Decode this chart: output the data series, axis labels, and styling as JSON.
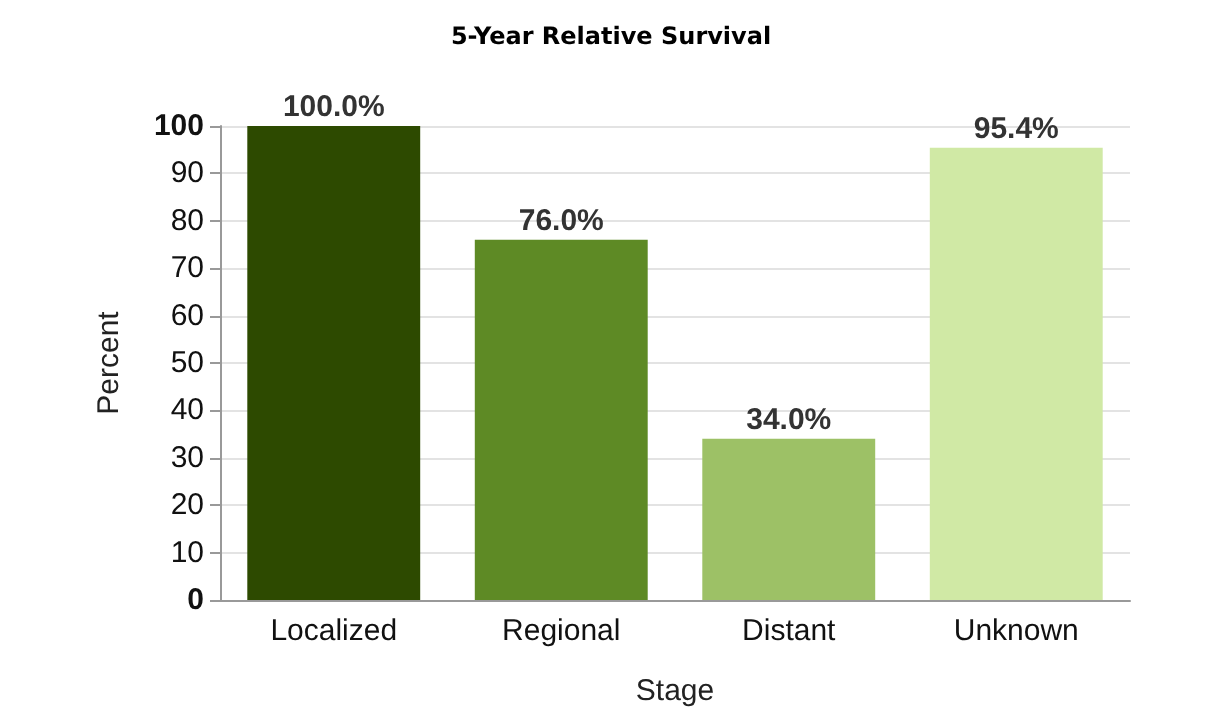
{
  "chart_data": {
    "type": "bar",
    "title": "5-Year Relative Survival",
    "xlabel": "Stage",
    "ylabel": "Percent",
    "categories": [
      "Localized",
      "Regional",
      "Distant",
      "Unknown"
    ],
    "values": [
      100.0,
      76.0,
      34.0,
      95.4
    ],
    "colors": [
      "#2d4a00",
      "#5e8a25",
      "#9dc166",
      "#d0e9a5"
    ],
    "value_labels": [
      "100.0%",
      "76.0%",
      "34.0%",
      "95.4%"
    ],
    "ylim": [
      0,
      100
    ],
    "yticks": [
      0,
      10,
      20,
      30,
      40,
      50,
      60,
      70,
      80,
      90,
      100
    ],
    "grid": "y"
  }
}
